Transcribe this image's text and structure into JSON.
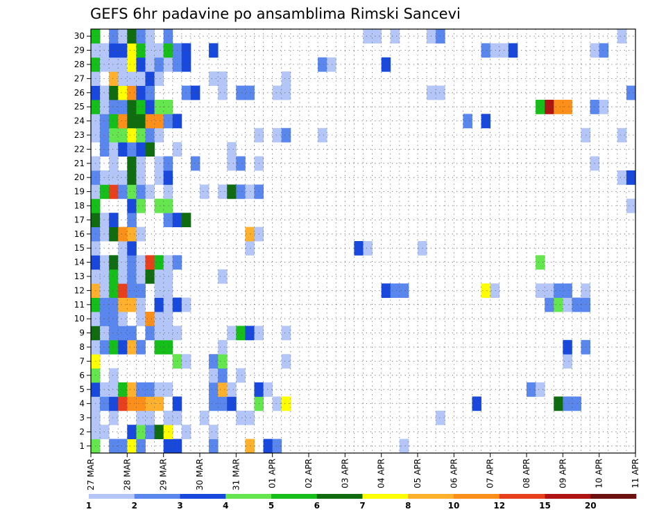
{
  "chart_data": {
    "type": "heatmap",
    "title": "GEFS 6hr padavine po ansamblima Rimski Sancevi",
    "xlabel": "",
    "ylabel": "",
    "x_ticks": [
      "27 MAR",
      "28 MAR",
      "29 MAR",
      "30 MAR",
      "31 MAR",
      "01 APR",
      "02 APR",
      "03 APR",
      "04 APR",
      "05 APR",
      "06 APR",
      "07 APR",
      "08 APR",
      "09 APR",
      "10 APR",
      "11 APR"
    ],
    "y_ticks": [
      1,
      2,
      3,
      4,
      5,
      6,
      7,
      8,
      9,
      10,
      11,
      12,
      13,
      14,
      15,
      16,
      17,
      18,
      19,
      20,
      21,
      22,
      23,
      24,
      25,
      26,
      27,
      28,
      29,
      30
    ],
    "n_time_steps": 60,
    "n_members": 30,
    "grid": true,
    "legend": {
      "position": "bottom",
      "labels": [
        "1",
        "2",
        "3",
        "4",
        "5",
        "6",
        "7",
        "8",
        "10",
        "12",
        "15",
        "20"
      ],
      "colors": [
        "#b4c6f7",
        "#5a87ee",
        "#1848dc",
        "#66e64e",
        "#16be1a",
        "#0f6d0f",
        "#ffff00",
        "#ffb12e",
        "#fb8f1a",
        "#e8401c",
        "#b01313",
        "#6d1010"
      ]
    },
    "units": "class index (1=1-2 .. 12=>20)",
    "cells": [
      [
        1,
        1,
        4
      ],
      [
        1,
        3,
        2
      ],
      [
        1,
        4,
        2
      ],
      [
        1,
        5,
        7
      ],
      [
        1,
        6,
        2
      ],
      [
        1,
        9,
        3
      ],
      [
        1,
        10,
        3
      ],
      [
        1,
        14,
        2
      ],
      [
        1,
        18,
        8
      ],
      [
        1,
        20,
        3
      ],
      [
        1,
        21,
        2
      ],
      [
        1,
        35,
        1
      ],
      [
        2,
        1,
        1
      ],
      [
        2,
        2,
        1
      ],
      [
        2,
        5,
        3
      ],
      [
        2,
        6,
        4
      ],
      [
        2,
        7,
        2
      ],
      [
        2,
        8,
        6
      ],
      [
        2,
        9,
        7
      ],
      [
        2,
        11,
        1
      ],
      [
        2,
        14,
        1
      ],
      [
        3,
        1,
        1
      ],
      [
        3,
        3,
        1
      ],
      [
        3,
        6,
        1
      ],
      [
        3,
        7,
        1
      ],
      [
        3,
        9,
        1
      ],
      [
        3,
        10,
        1
      ],
      [
        3,
        13,
        1
      ],
      [
        3,
        17,
        1
      ],
      [
        3,
        18,
        1
      ],
      [
        3,
        39,
        1
      ],
      [
        4,
        1,
        1
      ],
      [
        4,
        2,
        2
      ],
      [
        4,
        3,
        3
      ],
      [
        4,
        4,
        10
      ],
      [
        4,
        5,
        9
      ],
      [
        4,
        6,
        9
      ],
      [
        4,
        7,
        8
      ],
      [
        4,
        8,
        8
      ],
      [
        4,
        10,
        3
      ],
      [
        4,
        14,
        2
      ],
      [
        4,
        15,
        2
      ],
      [
        4,
        16,
        3
      ],
      [
        4,
        19,
        4
      ],
      [
        4,
        21,
        1
      ],
      [
        4,
        22,
        7
      ],
      [
        4,
        43,
        3
      ],
      [
        4,
        52,
        6
      ],
      [
        4,
        53,
        2
      ],
      [
        4,
        54,
        2
      ],
      [
        5,
        1,
        3
      ],
      [
        5,
        2,
        1
      ],
      [
        5,
        3,
        1
      ],
      [
        5,
        4,
        5
      ],
      [
        5,
        5,
        8
      ],
      [
        5,
        6,
        2
      ],
      [
        5,
        7,
        2
      ],
      [
        5,
        8,
        1
      ],
      [
        5,
        9,
        1
      ],
      [
        5,
        14,
        2
      ],
      [
        5,
        15,
        8
      ],
      [
        5,
        16,
        1
      ],
      [
        5,
        19,
        3
      ],
      [
        5,
        20,
        1
      ],
      [
        5,
        49,
        2
      ],
      [
        5,
        50,
        1
      ],
      [
        6,
        1,
        4
      ],
      [
        6,
        3,
        1
      ],
      [
        6,
        14,
        1
      ],
      [
        6,
        15,
        2
      ],
      [
        6,
        17,
        1
      ],
      [
        7,
        1,
        7
      ],
      [
        7,
        10,
        4
      ],
      [
        7,
        11,
        1
      ],
      [
        7,
        14,
        2
      ],
      [
        7,
        15,
        4
      ],
      [
        7,
        22,
        1
      ],
      [
        7,
        53,
        1
      ],
      [
        8,
        1,
        1
      ],
      [
        8,
        2,
        2
      ],
      [
        8,
        3,
        5
      ],
      [
        8,
        4,
        3
      ],
      [
        8,
        5,
        8
      ],
      [
        8,
        6,
        2
      ],
      [
        8,
        8,
        5
      ],
      [
        8,
        9,
        5
      ],
      [
        8,
        15,
        1
      ],
      [
        8,
        53,
        3
      ],
      [
        8,
        55,
        2
      ],
      [
        9,
        1,
        6
      ],
      [
        9,
        2,
        1
      ],
      [
        9,
        3,
        2
      ],
      [
        9,
        4,
        2
      ],
      [
        9,
        5,
        2
      ],
      [
        9,
        7,
        2
      ],
      [
        9,
        8,
        1
      ],
      [
        9,
        9,
        1
      ],
      [
        9,
        10,
        1
      ],
      [
        9,
        16,
        1
      ],
      [
        9,
        17,
        5
      ],
      [
        9,
        18,
        3
      ],
      [
        9,
        19,
        1
      ],
      [
        9,
        22,
        1
      ],
      [
        10,
        1,
        1
      ],
      [
        10,
        2,
        2
      ],
      [
        10,
        3,
        2
      ],
      [
        10,
        4,
        1
      ],
      [
        10,
        6,
        1
      ],
      [
        10,
        7,
        9
      ],
      [
        10,
        8,
        1
      ],
      [
        10,
        9,
        1
      ],
      [
        11,
        1,
        5
      ],
      [
        11,
        2,
        2
      ],
      [
        11,
        3,
        2
      ],
      [
        11,
        4,
        8
      ],
      [
        11,
        5,
        8
      ],
      [
        11,
        6,
        1
      ],
      [
        11,
        8,
        3
      ],
      [
        11,
        9,
        1
      ],
      [
        11,
        10,
        3
      ],
      [
        11,
        11,
        1
      ],
      [
        11,
        51,
        2
      ],
      [
        11,
        52,
        4
      ],
      [
        11,
        53,
        1
      ],
      [
        11,
        54,
        2
      ],
      [
        11,
        55,
        2
      ],
      [
        12,
        1,
        8
      ],
      [
        12,
        2,
        1
      ],
      [
        12,
        3,
        5
      ],
      [
        12,
        4,
        10
      ],
      [
        12,
        5,
        2
      ],
      [
        12,
        6,
        2
      ],
      [
        12,
        8,
        1
      ],
      [
        12,
        9,
        1
      ],
      [
        12,
        33,
        3
      ],
      [
        12,
        34,
        2
      ],
      [
        12,
        35,
        2
      ],
      [
        12,
        44,
        7
      ],
      [
        12,
        45,
        1
      ],
      [
        12,
        50,
        1
      ],
      [
        12,
        51,
        1
      ],
      [
        12,
        52,
        2
      ],
      [
        12,
        53,
        2
      ],
      [
        12,
        55,
        1
      ],
      [
        13,
        1,
        1
      ],
      [
        13,
        2,
        1
      ],
      [
        13,
        3,
        5
      ],
      [
        13,
        4,
        1
      ],
      [
        13,
        5,
        2
      ],
      [
        13,
        6,
        1
      ],
      [
        13,
        7,
        6
      ],
      [
        13,
        8,
        1
      ],
      [
        13,
        9,
        1
      ],
      [
        13,
        15,
        1
      ],
      [
        14,
        1,
        3
      ],
      [
        14,
        2,
        1
      ],
      [
        14,
        3,
        6
      ],
      [
        14,
        4,
        1
      ],
      [
        14,
        5,
        2
      ],
      [
        14,
        6,
        1
      ],
      [
        14,
        7,
        10
      ],
      [
        14,
        8,
        5
      ],
      [
        14,
        9,
        1
      ],
      [
        14,
        10,
        2
      ],
      [
        14,
        50,
        4
      ],
      [
        15,
        1,
        1
      ],
      [
        15,
        4,
        1
      ],
      [
        15,
        5,
        3
      ],
      [
        15,
        18,
        1
      ],
      [
        15,
        30,
        3
      ],
      [
        15,
        31,
        1
      ],
      [
        15,
        37,
        1
      ],
      [
        16,
        1,
        2
      ],
      [
        16,
        2,
        1
      ],
      [
        16,
        3,
        6
      ],
      [
        16,
        4,
        9
      ],
      [
        16,
        5,
        8
      ],
      [
        16,
        6,
        1
      ],
      [
        16,
        18,
        8
      ],
      [
        16,
        19,
        1
      ],
      [
        17,
        1,
        6
      ],
      [
        17,
        2,
        1
      ],
      [
        17,
        3,
        3
      ],
      [
        17,
        5,
        2
      ],
      [
        17,
        9,
        2
      ],
      [
        17,
        10,
        3
      ],
      [
        17,
        11,
        6
      ],
      [
        18,
        1,
        5
      ],
      [
        18,
        5,
        3
      ],
      [
        18,
        6,
        4
      ],
      [
        18,
        8,
        4
      ],
      [
        18,
        9,
        4
      ],
      [
        18,
        60,
        1
      ],
      [
        19,
        1,
        1
      ],
      [
        19,
        2,
        5
      ],
      [
        19,
        3,
        10
      ],
      [
        19,
        4,
        2
      ],
      [
        19,
        5,
        4
      ],
      [
        19,
        6,
        2
      ],
      [
        19,
        7,
        1
      ],
      [
        19,
        9,
        1
      ],
      [
        19,
        13,
        1
      ],
      [
        19,
        15,
        1
      ],
      [
        19,
        16,
        6
      ],
      [
        19,
        17,
        2
      ],
      [
        19,
        18,
        1
      ],
      [
        19,
        19,
        2
      ],
      [
        20,
        1,
        2
      ],
      [
        20,
        2,
        1
      ],
      [
        20,
        3,
        1
      ],
      [
        20,
        4,
        1
      ],
      [
        20,
        5,
        6
      ],
      [
        20,
        6,
        1
      ],
      [
        20,
        8,
        1
      ],
      [
        20,
        9,
        3
      ],
      [
        20,
        59,
        1
      ],
      [
        20,
        60,
        3
      ],
      [
        21,
        1,
        1
      ],
      [
        21,
        3,
        1
      ],
      [
        21,
        5,
        6
      ],
      [
        21,
        6,
        1
      ],
      [
        21,
        8,
        1
      ],
      [
        21,
        9,
        2
      ],
      [
        21,
        12,
        2
      ],
      [
        21,
        16,
        1
      ],
      [
        21,
        17,
        2
      ],
      [
        21,
        19,
        1
      ],
      [
        21,
        56,
        1
      ],
      [
        22,
        2,
        2
      ],
      [
        22,
        3,
        1
      ],
      [
        22,
        4,
        3
      ],
      [
        22,
        5,
        2
      ],
      [
        22,
        6,
        3
      ],
      [
        22,
        7,
        6
      ],
      [
        22,
        10,
        1
      ],
      [
        22,
        16,
        1
      ],
      [
        23,
        1,
        1
      ],
      [
        23,
        2,
        2
      ],
      [
        23,
        3,
        4
      ],
      [
        23,
        4,
        4
      ],
      [
        23,
        5,
        7
      ],
      [
        23,
        6,
        4
      ],
      [
        23,
        7,
        2
      ],
      [
        23,
        8,
        1
      ],
      [
        23,
        19,
        1
      ],
      [
        23,
        21,
        1
      ],
      [
        23,
        22,
        2
      ],
      [
        23,
        26,
        1
      ],
      [
        23,
        55,
        1
      ],
      [
        23,
        59,
        1
      ],
      [
        24,
        1,
        1
      ],
      [
        24,
        2,
        2
      ],
      [
        24,
        3,
        5
      ],
      [
        24,
        4,
        9
      ],
      [
        24,
        5,
        6
      ],
      [
        24,
        6,
        6
      ],
      [
        24,
        7,
        9
      ],
      [
        24,
        8,
        9
      ],
      [
        24,
        9,
        2
      ],
      [
        24,
        10,
        3
      ],
      [
        24,
        42,
        2
      ],
      [
        24,
        44,
        3
      ],
      [
        25,
        1,
        5
      ],
      [
        25,
        2,
        1
      ],
      [
        25,
        3,
        2
      ],
      [
        25,
        4,
        2
      ],
      [
        25,
        5,
        6
      ],
      [
        25,
        6,
        5
      ],
      [
        25,
        7,
        3
      ],
      [
        25,
        8,
        4
      ],
      [
        25,
        9,
        4
      ],
      [
        25,
        50,
        5
      ],
      [
        25,
        51,
        11
      ],
      [
        25,
        52,
        9
      ],
      [
        25,
        53,
        9
      ],
      [
        25,
        56,
        2
      ],
      [
        25,
        57,
        1
      ],
      [
        26,
        1,
        3
      ],
      [
        26,
        2,
        1
      ],
      [
        26,
        3,
        6
      ],
      [
        26,
        4,
        7
      ],
      [
        26,
        5,
        9
      ],
      [
        26,
        6,
        3
      ],
      [
        26,
        7,
        2
      ],
      [
        26,
        11,
        2
      ],
      [
        26,
        12,
        3
      ],
      [
        26,
        15,
        1
      ],
      [
        26,
        17,
        2
      ],
      [
        26,
        18,
        2
      ],
      [
        26,
        21,
        1
      ],
      [
        26,
        22,
        1
      ],
      [
        26,
        38,
        1
      ],
      [
        26,
        39,
        1
      ],
      [
        26,
        60,
        2
      ],
      [
        27,
        1,
        1
      ],
      [
        27,
        3,
        8
      ],
      [
        27,
        4,
        1
      ],
      [
        27,
        5,
        1
      ],
      [
        27,
        6,
        1
      ],
      [
        27,
        7,
        3
      ],
      [
        27,
        8,
        1
      ],
      [
        27,
        14,
        1
      ],
      [
        27,
        15,
        1
      ],
      [
        27,
        22,
        1
      ],
      [
        28,
        1,
        5
      ],
      [
        28,
        2,
        1
      ],
      [
        28,
        3,
        1
      ],
      [
        28,
        4,
        1
      ],
      [
        28,
        5,
        7
      ],
      [
        28,
        6,
        3
      ],
      [
        28,
        7,
        1
      ],
      [
        28,
        8,
        2
      ],
      [
        28,
        9,
        1
      ],
      [
        28,
        10,
        2
      ],
      [
        28,
        11,
        3
      ],
      [
        28,
        26,
        2
      ],
      [
        28,
        27,
        1
      ],
      [
        28,
        33,
        3
      ],
      [
        29,
        1,
        1
      ],
      [
        29,
        2,
        1
      ],
      [
        29,
        3,
        3
      ],
      [
        29,
        4,
        3
      ],
      [
        29,
        5,
        7
      ],
      [
        29,
        6,
        5
      ],
      [
        29,
        7,
        1
      ],
      [
        29,
        8,
        1
      ],
      [
        29,
        9,
        5
      ],
      [
        29,
        10,
        2
      ],
      [
        29,
        11,
        3
      ],
      [
        29,
        14,
        3
      ],
      [
        29,
        44,
        2
      ],
      [
        29,
        45,
        1
      ],
      [
        29,
        46,
        1
      ],
      [
        29,
        47,
        3
      ],
      [
        29,
        56,
        1
      ],
      [
        29,
        57,
        2
      ],
      [
        30,
        1,
        5
      ],
      [
        30,
        3,
        2
      ],
      [
        30,
        4,
        1
      ],
      [
        30,
        5,
        6
      ],
      [
        30,
        6,
        2
      ],
      [
        30,
        7,
        1
      ],
      [
        30,
        9,
        2
      ],
      [
        30,
        31,
        1
      ],
      [
        30,
        32,
        1
      ],
      [
        30,
        34,
        1
      ],
      [
        30,
        38,
        1
      ],
      [
        30,
        39,
        2
      ],
      [
        30,
        59,
        1
      ]
    ]
  }
}
